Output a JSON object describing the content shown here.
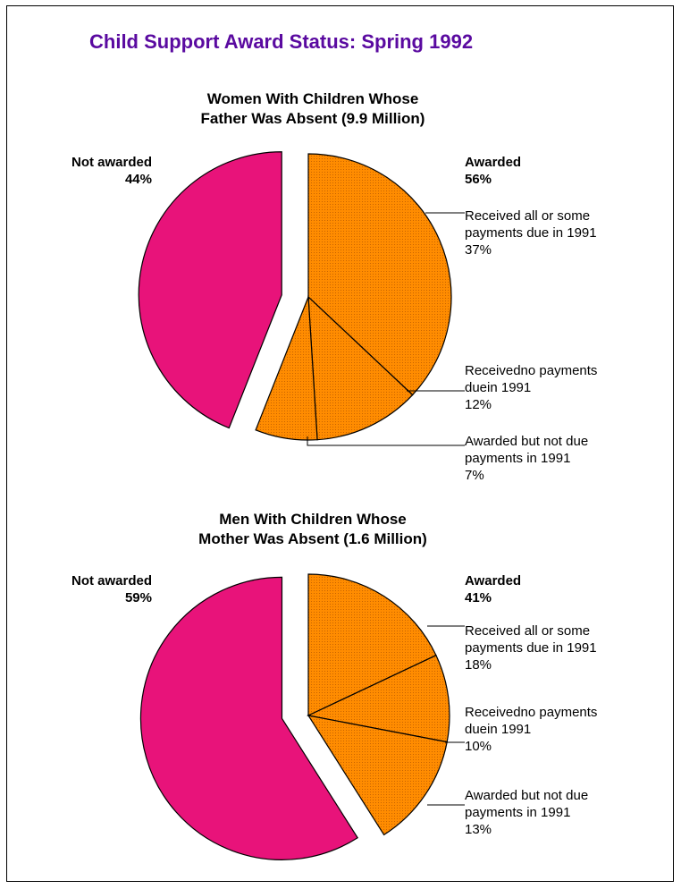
{
  "chart_data": [
    {
      "type": "pie",
      "title": "Child Support Award Status:  Spring 1992",
      "subtitle": [
        "Women With Children Whose",
        "Father Was Absent (9.9 Million)"
      ],
      "slices": [
        {
          "name": "Not awarded",
          "value": 44,
          "label": "44%",
          "group": "not_awarded"
        },
        {
          "name": "Received all or some payments due in 1991",
          "value": 37,
          "label": "37%",
          "group": "awarded"
        },
        {
          "name": "Received no payments due in 1991",
          "value": 12,
          "label": "12%",
          "group": "awarded"
        },
        {
          "name": "Awarded but not due payments in 1991",
          "value": 7,
          "label": "7%",
          "group": "awarded"
        }
      ],
      "awarded_total": "56%"
    },
    {
      "type": "pie",
      "subtitle": [
        "Men With Children Whose",
        "Mother Was Absent (1.6 Million)"
      ],
      "slices": [
        {
          "name": "Not awarded",
          "value": 59,
          "label": "59%",
          "group": "not_awarded"
        },
        {
          "name": "Received all or some payments due in 1991",
          "value": 18,
          "label": "18%",
          "group": "awarded"
        },
        {
          "name": "Received no payments due in 1991",
          "value": 10,
          "label": "10%",
          "group": "awarded"
        },
        {
          "name": "Awarded but not due payments in 1991",
          "value": 13,
          "label": "13%",
          "group": "awarded"
        }
      ],
      "awarded_total": "41%"
    }
  ],
  "labels": {
    "not_awarded": "Not awarded",
    "awarded": "Awarded",
    "received_some": [
      "Received all or some",
      "payments due in 1991"
    ],
    "received_none": [
      "Receivedno payments",
      "duein 1991"
    ],
    "not_due": [
      "Awarded but not due",
      "payments in 1991"
    ]
  },
  "colors": {
    "awarded": "#ff8c00",
    "not_awarded": "#e8137a",
    "title": "#5a0aa0"
  }
}
